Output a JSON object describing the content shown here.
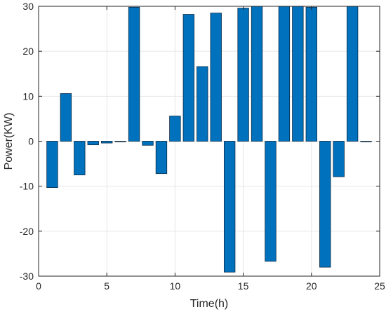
{
  "chart_data": {
    "type": "bar",
    "xlabel": "Time(h)",
    "ylabel": "Power(KW)",
    "xlim": [
      0,
      25
    ],
    "ylim": [
      -30,
      30
    ],
    "xticks": [
      0,
      5,
      10,
      15,
      20,
      25
    ],
    "yticks": [
      -30,
      -20,
      -10,
      0,
      10,
      20,
      30
    ],
    "grid": true,
    "bar_color": "#0072BD",
    "bar_edge_color": "#0B2A44",
    "x": [
      1,
      2,
      3,
      4,
      5,
      6,
      7,
      8,
      9,
      10,
      11,
      12,
      13,
      14,
      15,
      16,
      17,
      18,
      19,
      20,
      21,
      22,
      23,
      24
    ],
    "values": [
      -10.3,
      10.6,
      -7.5,
      -0.8,
      -0.4,
      -0.1,
      29.8,
      -0.9,
      -7.2,
      5.6,
      28.2,
      16.6,
      28.5,
      -29.1,
      29.6,
      30,
      -26.7,
      30,
      30,
      29.8,
      -28,
      -7.9,
      30,
      -0.1
    ]
  }
}
